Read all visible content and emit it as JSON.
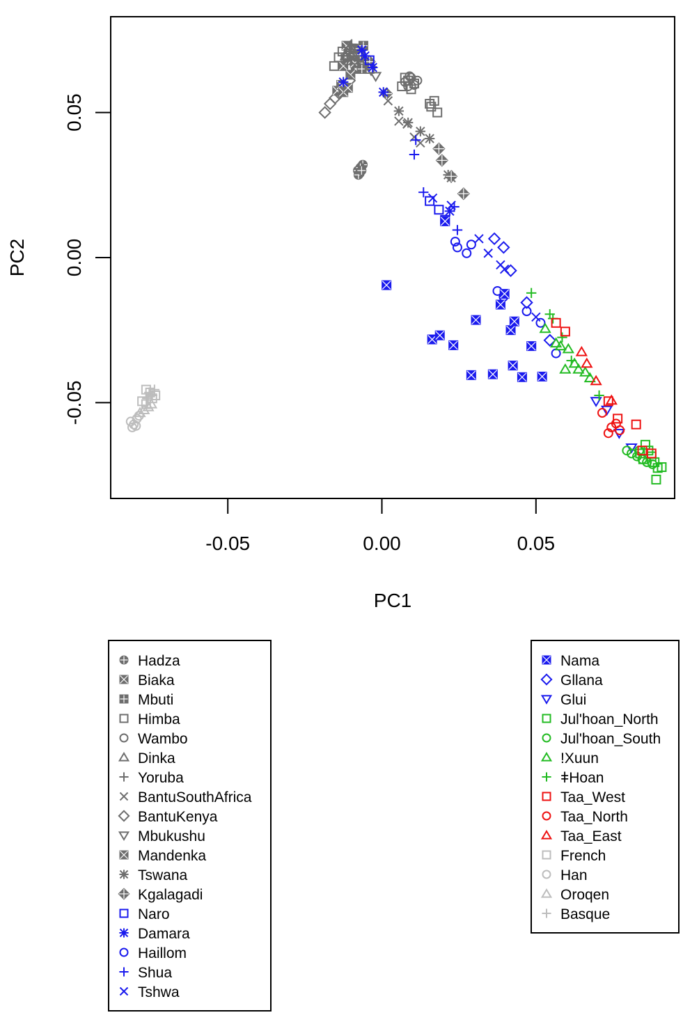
{
  "chart_data": {
    "type": "scatter",
    "title": "",
    "xlabel": "PC1",
    "ylabel": "PC2",
    "xlim": [
      -0.088,
      0.095
    ],
    "ylim": [
      -0.083,
      0.083
    ],
    "x_ticks": [
      -0.05,
      0.0,
      0.05
    ],
    "x_tick_labels": [
      "-0.05",
      "0.00",
      "0.05"
    ],
    "y_ticks": [
      -0.05,
      0.0,
      0.05
    ],
    "y_tick_labels": [
      "-0.05",
      "0.00",
      "0.05"
    ],
    "grid": false,
    "legend_placement": "below",
    "colors": {
      "gray": "#6e6e6e",
      "blue": "#1a1aee",
      "green": "#22bb22",
      "red": "#ee1111",
      "lightgray": "#bdbdbd"
    },
    "series": [
      {
        "name": "Hadza",
        "color": "#6e6e6e",
        "marker": "circle-plus",
        "points": [
          [
            -0.0078,
            0.03
          ],
          [
            -0.0072,
            0.029
          ],
          [
            -0.0062,
            0.032
          ],
          [
            -0.0076,
            0.0285
          ],
          [
            -0.007,
            0.031
          ],
          [
            -0.0066,
            0.03
          ]
        ]
      },
      {
        "name": "Biaka",
        "color": "#6e6e6e",
        "marker": "square-x",
        "points": [
          [
            -0.0125,
            0.066
          ],
          [
            -0.0118,
            0.069
          ],
          [
            -0.0108,
            0.071
          ],
          [
            -0.0098,
            0.068
          ],
          [
            -0.0092,
            0.072
          ],
          [
            -0.0085,
            0.065
          ],
          [
            -0.0102,
            0.063
          ],
          [
            -0.0115,
            0.073
          ],
          [
            -0.0088,
            0.067
          ]
        ]
      },
      {
        "name": "Mbuti",
        "color": "#6e6e6e",
        "marker": "square-plus",
        "points": [
          [
            -0.0075,
            0.072
          ],
          [
            -0.0068,
            0.069
          ],
          [
            -0.006,
            0.073
          ],
          [
            -0.0055,
            0.067
          ],
          [
            -0.0065,
            0.065
          ],
          [
            -0.007,
            0.07
          ]
        ]
      },
      {
        "name": "Himba",
        "color": "#6e6e6e",
        "marker": "square",
        "points": [
          [
            -0.0155,
            0.066
          ],
          [
            -0.014,
            0.069
          ],
          [
            -0.0128,
            0.071
          ],
          [
            -0.0112,
            0.068
          ],
          [
            -0.004,
            0.065
          ],
          [
            0.0065,
            0.059
          ],
          [
            0.0075,
            0.062
          ],
          [
            0.0085,
            0.061
          ],
          [
            0.0095,
            0.058
          ],
          [
            0.0105,
            0.06
          ],
          [
            0.016,
            0.052
          ],
          [
            0.017,
            0.054
          ],
          [
            0.018,
            0.05
          ],
          [
            0.0155,
            0.053
          ]
        ]
      },
      {
        "name": "Wambo",
        "color": "#6e6e6e",
        "marker": "circle",
        "points": [
          [
            0.0075,
            0.0605
          ],
          [
            0.0085,
            0.059
          ],
          [
            0.0095,
            0.062
          ],
          [
            0.0105,
            0.0595
          ],
          [
            0.0115,
            0.061
          ],
          [
            0.009,
            0.0625
          ]
        ]
      },
      {
        "name": "Dinka",
        "color": "#6e6e6e",
        "marker": "triangle",
        "points": [
          [
            -0.0118,
            0.0695
          ],
          [
            -0.011,
            0.0715
          ],
          [
            -0.0102,
            0.073
          ],
          [
            -0.0095,
            0.0705
          ],
          [
            -0.0088,
            0.068
          ]
        ]
      },
      {
        "name": "Yoruba",
        "color": "#6e6e6e",
        "marker": "plus",
        "points": [
          [
            -0.0112,
            0.0685
          ],
          [
            -0.0105,
            0.071
          ],
          [
            -0.0098,
            0.0735
          ],
          [
            -0.009,
            0.0695
          ]
        ]
      },
      {
        "name": "BantuSouthAfrica",
        "color": "#6e6e6e",
        "marker": "x",
        "points": [
          [
            0.002,
            0.054
          ],
          [
            0.0055,
            0.047
          ],
          [
            0.0082,
            0.046
          ],
          [
            0.0105,
            0.0415
          ],
          [
            0.0125,
            0.0395
          ]
        ]
      },
      {
        "name": "BantuKenya",
        "color": "#6e6e6e",
        "marker": "diamond",
        "points": [
          [
            -0.0185,
            0.05
          ],
          [
            -0.0168,
            0.053
          ],
          [
            -0.0152,
            0.055
          ],
          [
            -0.0138,
            0.0565
          ],
          [
            -0.0122,
            0.059
          ],
          [
            -0.0105,
            0.061
          ]
        ]
      },
      {
        "name": "Mbukushu",
        "color": "#6e6e6e",
        "marker": "triangle-down",
        "points": [
          [
            -0.0035,
            0.0645
          ],
          [
            -0.002,
            0.0625
          ],
          [
            -0.0045,
            0.066
          ]
        ]
      },
      {
        "name": "Mandenka",
        "color": "#6e6e6e",
        "marker": "square-x",
        "points": [
          [
            -0.0145,
            0.0575
          ],
          [
            -0.0132,
            0.0595
          ],
          [
            -0.0125,
            0.057
          ],
          [
            -0.011,
            0.0585
          ]
        ]
      },
      {
        "name": "Tswana",
        "color": "#6e6e6e",
        "marker": "asterisk",
        "points": [
          [
            0.0055,
            0.0505
          ],
          [
            0.0085,
            0.0465
          ],
          [
            0.0125,
            0.0435
          ],
          [
            0.0155,
            0.041
          ],
          [
            0.0215,
            0.0285
          ],
          [
            0.0225,
            0.0275
          ]
        ]
      },
      {
        "name": "Kgalagadi",
        "color": "#6e6e6e",
        "marker": "diamond-plus",
        "points": [
          [
            0.0185,
            0.0375
          ],
          [
            0.0195,
            0.0335
          ],
          [
            0.0225,
            0.028
          ],
          [
            0.0265,
            0.022
          ],
          [
            0.0015,
            0.0565
          ],
          [
            -0.004,
            0.0675
          ]
        ]
      },
      {
        "name": "Naro",
        "color": "#1a1aee",
        "marker": "square",
        "points": [
          [
            0.0155,
            0.0195
          ],
          [
            0.0185,
            0.0165
          ],
          [
            0.0205,
            0.013
          ],
          [
            -0.004,
            0.068
          ]
        ]
      },
      {
        "name": "Damara",
        "color": "#1a1aee",
        "marker": "asterisk",
        "points": [
          [
            -0.0125,
            0.0605
          ],
          [
            -0.0065,
            0.0715
          ],
          [
            -0.0055,
            0.0695
          ],
          [
            -0.003,
            0.0655
          ],
          [
            0.0005,
            0.057
          ],
          [
            0.022,
            0.016
          ]
        ]
      },
      {
        "name": "Haillom",
        "color": "#1a1aee",
        "marker": "circle",
        "points": [
          [
            0.0238,
            0.0055
          ],
          [
            0.0245,
            0.0035
          ],
          [
            0.0275,
            0.0015
          ],
          [
            0.029,
            0.0045
          ],
          [
            0.0375,
            -0.0115
          ],
          [
            0.0395,
            -0.0135
          ],
          [
            0.047,
            -0.0185
          ],
          [
            0.0515,
            -0.0225
          ],
          [
            0.0565,
            -0.033
          ]
        ]
      },
      {
        "name": "Shua",
        "color": "#1a1aee",
        "marker": "plus",
        "points": [
          [
            0.011,
            0.0405
          ],
          [
            0.0105,
            0.0355
          ],
          [
            0.0135,
            0.0225
          ],
          [
            0.0245,
            0.0095
          ],
          [
            0.0235,
            0.0175
          ]
        ]
      },
      {
        "name": "Tshwa",
        "color": "#1a1aee",
        "marker": "x",
        "points": [
          [
            0.0165,
            0.0205
          ],
          [
            0.0225,
            0.018
          ],
          [
            0.0315,
            0.0065
          ],
          [
            0.0345,
            0.0015
          ],
          [
            0.0398,
            -0.004
          ],
          [
            0.0385,
            -0.0025
          ],
          [
            0.05,
            -0.0205
          ]
        ]
      },
      {
        "name": "Nama",
        "color": "#1a1aee",
        "marker": "square-x",
        "points": [
          [
            0.0015,
            -0.0095
          ],
          [
            0.0163,
            -0.0282
          ],
          [
            0.0188,
            -0.0268
          ],
          [
            0.0232,
            -0.0302
          ],
          [
            0.0305,
            -0.0215
          ],
          [
            0.029,
            -0.0405
          ],
          [
            0.036,
            -0.0402
          ],
          [
            0.0385,
            -0.0162
          ],
          [
            0.0398,
            -0.0125
          ],
          [
            0.0418,
            -0.025
          ],
          [
            0.043,
            -0.022
          ],
          [
            0.0425,
            -0.0372
          ],
          [
            0.0455,
            -0.0412
          ],
          [
            0.0485,
            -0.0305
          ],
          [
            0.052,
            -0.041
          ],
          [
            0.0205,
            0.0125
          ]
        ]
      },
      {
        "name": "Gllana",
        "color": "#1a1aee",
        "marker": "diamond",
        "points": [
          [
            0.0365,
            0.0065
          ],
          [
            0.0395,
            0.0035
          ],
          [
            0.0418,
            -0.0045
          ],
          [
            0.047,
            -0.0155
          ],
          [
            0.0545,
            -0.0285
          ]
        ]
      },
      {
        "name": "Glui",
        "color": "#1a1aee",
        "marker": "triangle-down",
        "points": [
          [
            0.0695,
            -0.0495
          ],
          [
            0.073,
            -0.0525
          ],
          [
            0.077,
            -0.0605
          ],
          [
            0.081,
            -0.0655
          ]
        ]
      },
      {
        "name": "Jul'hoan_North",
        "color": "#22bb22",
        "marker": "square",
        "points": [
          [
            0.0855,
            -0.0645
          ],
          [
            0.0865,
            -0.0665
          ],
          [
            0.0875,
            -0.0685
          ],
          [
            0.0885,
            -0.0705
          ],
          [
            0.0895,
            -0.0725
          ],
          [
            0.0908,
            -0.0722
          ],
          [
            0.089,
            -0.0765
          ],
          [
            0.0838,
            -0.0675
          ],
          [
            0.0848,
            -0.0695
          ]
        ]
      },
      {
        "name": "Jul'hoan_South",
        "color": "#22bb22",
        "marker": "circle",
        "points": [
          [
            0.0795,
            -0.0665
          ],
          [
            0.081,
            -0.0675
          ],
          [
            0.0828,
            -0.0685
          ],
          [
            0.0845,
            -0.0695
          ],
          [
            0.086,
            -0.0705
          ],
          [
            0.0878,
            -0.0712
          ],
          [
            0.0835,
            -0.0665
          ]
        ]
      },
      {
        "name": "!Xuun",
        "color": "#22bb22",
        "marker": "triangle",
        "points": [
          [
            0.053,
            -0.0245
          ],
          [
            0.0565,
            -0.0295
          ],
          [
            0.058,
            -0.0305
          ],
          [
            0.0605,
            -0.0315
          ],
          [
            0.0625,
            -0.0365
          ],
          [
            0.0638,
            -0.0385
          ],
          [
            0.066,
            -0.0395
          ],
          [
            0.0675,
            -0.0415
          ],
          [
            0.0595,
            -0.0385
          ]
        ]
      },
      {
        "name": "ǂHoan",
        "color": "#22bb22",
        "marker": "plus",
        "points": [
          [
            0.0485,
            -0.0122
          ],
          [
            0.0545,
            -0.0195
          ],
          [
            0.0555,
            -0.021
          ],
          [
            0.0585,
            -0.0275
          ],
          [
            0.0615,
            -0.0355
          ],
          [
            0.0705,
            -0.0475
          ]
        ]
      },
      {
        "name": "Taa_West",
        "color": "#ee1111",
        "marker": "square",
        "points": [
          [
            0.0565,
            -0.0225
          ],
          [
            0.0595,
            -0.0255
          ],
          [
            0.0735,
            -0.0495
          ],
          [
            0.0765,
            -0.0555
          ],
          [
            0.0825,
            -0.0575
          ],
          [
            0.0845,
            -0.0665
          ],
          [
            0.0875,
            -0.0675
          ]
        ]
      },
      {
        "name": "Taa_North",
        "color": "#ee1111",
        "marker": "circle",
        "points": [
          [
            0.0715,
            -0.0535
          ],
          [
            0.0745,
            -0.0585
          ],
          [
            0.0772,
            -0.0595
          ],
          [
            0.076,
            -0.0572
          ],
          [
            0.0735,
            -0.0605
          ]
        ]
      },
      {
        "name": "Taa_East",
        "color": "#ee1111",
        "marker": "triangle",
        "points": [
          [
            0.0648,
            -0.0325
          ],
          [
            0.0665,
            -0.0365
          ],
          [
            0.0695,
            -0.0425
          ],
          [
            0.0745,
            -0.0492
          ]
        ]
      },
      {
        "name": "French",
        "color": "#bdbdbd",
        "marker": "square",
        "points": [
          [
            -0.0765,
            -0.0455
          ],
          [
            -0.0752,
            -0.0465
          ],
          [
            -0.0745,
            -0.0485
          ],
          [
            -0.0735,
            -0.0475
          ],
          [
            -0.0778,
            -0.0495
          ],
          [
            -0.0765,
            -0.0505
          ]
        ]
      },
      {
        "name": "Han",
        "color": "#bdbdbd",
        "marker": "circle",
        "points": [
          [
            -0.0815,
            -0.0565
          ],
          [
            -0.0805,
            -0.0575
          ],
          [
            -0.0795,
            -0.0555
          ],
          [
            -0.0788,
            -0.0545
          ],
          [
            -0.081,
            -0.0585
          ],
          [
            -0.0798,
            -0.058
          ]
        ]
      },
      {
        "name": "Oroqen",
        "color": "#bdbdbd",
        "marker": "triangle",
        "points": [
          [
            -0.0758,
            -0.0515
          ],
          [
            -0.0772,
            -0.0525
          ],
          [
            -0.0785,
            -0.0535
          ],
          [
            -0.0748,
            -0.0505
          ]
        ]
      },
      {
        "name": "Basque",
        "color": "#bdbdbd",
        "marker": "plus",
        "points": [
          [
            -0.0755,
            -0.0465
          ],
          [
            -0.0745,
            -0.0475
          ],
          [
            -0.0738,
            -0.0455
          ],
          [
            -0.0762,
            -0.0485
          ]
        ]
      }
    ],
    "legends": [
      {
        "items": [
          "Hadza",
          "Biaka",
          "Mbuti",
          "Himba",
          "Wambo",
          "Dinka",
          "Yoruba",
          "BantuSouthAfrica",
          "BantuKenya",
          "Mbukushu",
          "Mandenka",
          "Tswana",
          "Kgalagadi",
          "Naro",
          "Damara",
          "Haillom",
          "Shua",
          "Tshwa"
        ]
      },
      {
        "items": [
          "Nama",
          "Gllana",
          "Glui",
          "Jul'hoan_North",
          "Jul'hoan_South",
          "!Xuun",
          "ǂHoan",
          "Taa_West",
          "Taa_North",
          "Taa_East",
          "French",
          "Han",
          "Oroqen",
          "Basque"
        ]
      }
    ]
  }
}
